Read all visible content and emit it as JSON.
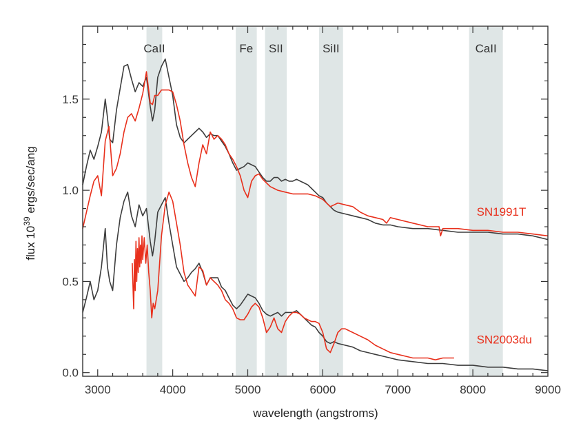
{
  "chart_data": {
    "type": "line",
    "xlabel": "wavelength (angstroms)",
    "ylabel_prefix": "flux 10",
    "ylabel_exponent": "39",
    "ylabel_suffix": " ergs/sec/ang",
    "xlim": [
      2800,
      9000
    ],
    "ylim": [
      -0.02,
      1.9
    ],
    "xticks": [
      3000,
      4000,
      5000,
      6000,
      7000,
      8000,
      9000
    ],
    "yticks": [
      0.0,
      0.5,
      1.0,
      1.5
    ],
    "ytick_labels": [
      "0.0",
      "0.5",
      "1.0",
      "1.5"
    ],
    "grid": false,
    "colors": {
      "dark": "#3d3d3d",
      "red": "#e8301c",
      "band": "#dfe6e6"
    },
    "bands": [
      {
        "label": "CaII",
        "from": 3650,
        "to": 3860
      },
      {
        "label": "Fe",
        "from": 4840,
        "to": 5120
      },
      {
        "label": "SII",
        "from": 5230,
        "to": 5520
      },
      {
        "label": "SiII",
        "from": 5950,
        "to": 6270
      },
      {
        "label": "CaII",
        "from": 7950,
        "to": 8400
      }
    ],
    "series_labels": [
      {
        "name": "SN1991T",
        "series": "SN1991T (red)",
        "x": 8050,
        "y": 0.86
      },
      {
        "name": "SN2003du",
        "series": "SN2003du (red)",
        "x": 8050,
        "y": 0.16
      }
    ],
    "series": [
      {
        "name": "SN1991T (dark)",
        "color": "dark",
        "x": [
          2800,
          2850,
          2900,
          2950,
          3000,
          3050,
          3100,
          3130,
          3160,
          3200,
          3250,
          3300,
          3350,
          3400,
          3450,
          3500,
          3550,
          3600,
          3650,
          3700,
          3730,
          3760,
          3800,
          3850,
          3900,
          3950,
          4000,
          4050,
          4100,
          4150,
          4200,
          4250,
          4300,
          4350,
          4400,
          4450,
          4500,
          4550,
          4600,
          4650,
          4700,
          4750,
          4800,
          4850,
          4900,
          4950,
          5000,
          5050,
          5100,
          5150,
          5200,
          5250,
          5300,
          5350,
          5400,
          5450,
          5500,
          5550,
          5600,
          5650,
          5700,
          5750,
          5800,
          5850,
          5900,
          5950,
          6000,
          6050,
          6100,
          6150,
          6200,
          6300,
          6400,
          6500,
          6600,
          6700,
          6800,
          6900,
          7000,
          7200,
          7400,
          7600,
          7800,
          8000,
          8200,
          8400,
          8600,
          8800,
          9000
        ],
        "y": [
          1.03,
          1.13,
          1.22,
          1.17,
          1.24,
          1.32,
          1.5,
          1.4,
          1.28,
          1.26,
          1.44,
          1.56,
          1.68,
          1.69,
          1.61,
          1.54,
          1.59,
          1.57,
          1.62,
          1.46,
          1.38,
          1.44,
          1.62,
          1.68,
          1.72,
          1.62,
          1.52,
          1.36,
          1.29,
          1.26,
          1.28,
          1.3,
          1.32,
          1.34,
          1.32,
          1.29,
          1.31,
          1.3,
          1.3,
          1.27,
          1.24,
          1.2,
          1.15,
          1.11,
          1.12,
          1.13,
          1.15,
          1.14,
          1.13,
          1.1,
          1.07,
          1.05,
          1.05,
          1.07,
          1.07,
          1.05,
          1.06,
          1.05,
          1.05,
          1.06,
          1.05,
          1.04,
          1.03,
          1.01,
          0.99,
          0.97,
          0.96,
          0.93,
          0.91,
          0.89,
          0.88,
          0.87,
          0.86,
          0.85,
          0.84,
          0.82,
          0.81,
          0.81,
          0.8,
          0.79,
          0.79,
          0.78,
          0.77,
          0.77,
          0.77,
          0.76,
          0.76,
          0.75,
          0.73
        ]
      },
      {
        "name": "SN1991T (red)",
        "color": "red",
        "x": [
          2800,
          2900,
          2950,
          3000,
          3050,
          3100,
          3150,
          3200,
          3250,
          3300,
          3350,
          3400,
          3450,
          3500,
          3550,
          3600,
          3650,
          3700,
          3730,
          3760,
          3800,
          3850,
          3900,
          3950,
          4000,
          4050,
          4100,
          4150,
          4200,
          4250,
          4300,
          4350,
          4400,
          4450,
          4500,
          4550,
          4600,
          4650,
          4700,
          4750,
          4800,
          4850,
          4900,
          4950,
          5000,
          5050,
          5100,
          5150,
          5200,
          5250,
          5300,
          5400,
          5500,
          5600,
          5700,
          5800,
          5900,
          6000,
          6050,
          6100,
          6150,
          6200,
          6300,
          6400,
          6500,
          6600,
          6700,
          6800,
          6850,
          6900,
          7000,
          7200,
          7400,
          7550,
          7570,
          7600,
          7800,
          8000,
          8200,
          8400,
          8600,
          8800,
          9000
        ],
        "y": [
          0.79,
          0.97,
          1.05,
          1.08,
          0.97,
          1.27,
          1.35,
          1.08,
          1.12,
          1.2,
          1.32,
          1.4,
          1.42,
          1.38,
          1.45,
          1.53,
          1.65,
          1.48,
          1.47,
          1.52,
          1.52,
          1.55,
          1.55,
          1.55,
          1.54,
          1.47,
          1.38,
          1.25,
          1.15,
          1.07,
          1.02,
          1.15,
          1.25,
          1.2,
          1.32,
          1.28,
          1.3,
          1.28,
          1.25,
          1.2,
          1.17,
          1.13,
          1.08,
          1.0,
          0.96,
          1.05,
          1.08,
          1.09,
          1.06,
          1.04,
          1.02,
          1.0,
          0.99,
          0.98,
          0.98,
          0.98,
          0.97,
          0.95,
          0.93,
          0.91,
          0.92,
          0.93,
          0.92,
          0.91,
          0.88,
          0.86,
          0.85,
          0.84,
          0.82,
          0.85,
          0.84,
          0.82,
          0.8,
          0.8,
          0.75,
          0.79,
          0.79,
          0.78,
          0.78,
          0.77,
          0.77,
          0.76,
          0.75
        ]
      },
      {
        "name": "SN2003du (dark)",
        "color": "dark",
        "x": [
          2800,
          2850,
          2900,
          2950,
          3000,
          3050,
          3100,
          3130,
          3160,
          3200,
          3250,
          3300,
          3350,
          3400,
          3450,
          3500,
          3550,
          3600,
          3650,
          3700,
          3730,
          3760,
          3800,
          3850,
          3900,
          3950,
          4000,
          4050,
          4100,
          4150,
          4200,
          4250,
          4300,
          4350,
          4400,
          4450,
          4500,
          4550,
          4600,
          4650,
          4700,
          4750,
          4800,
          4850,
          4900,
          4950,
          5000,
          5050,
          5100,
          5150,
          5200,
          5250,
          5300,
          5350,
          5400,
          5450,
          5500,
          5550,
          5600,
          5650,
          5700,
          5750,
          5800,
          5850,
          5900,
          5950,
          6000,
          6050,
          6100,
          6150,
          6200,
          6300,
          6400,
          6500,
          6600,
          6700,
          6800,
          6900,
          7000,
          7200,
          7400,
          7600,
          7800,
          8000,
          8200,
          8400,
          8600,
          8800,
          9000
        ],
        "y": [
          0.33,
          0.41,
          0.5,
          0.4,
          0.45,
          0.58,
          0.79,
          0.58,
          0.5,
          0.45,
          0.7,
          0.85,
          0.94,
          0.99,
          0.86,
          0.8,
          0.92,
          0.86,
          0.9,
          0.72,
          0.64,
          0.72,
          0.88,
          0.92,
          0.96,
          0.82,
          0.7,
          0.58,
          0.54,
          0.5,
          0.52,
          0.55,
          0.57,
          0.6,
          0.55,
          0.48,
          0.52,
          0.52,
          0.52,
          0.47,
          0.45,
          0.41,
          0.37,
          0.35,
          0.37,
          0.4,
          0.43,
          0.42,
          0.41,
          0.38,
          0.34,
          0.32,
          0.31,
          0.32,
          0.33,
          0.31,
          0.33,
          0.33,
          0.33,
          0.34,
          0.32,
          0.3,
          0.28,
          0.26,
          0.25,
          0.22,
          0.2,
          0.17,
          0.16,
          0.17,
          0.16,
          0.15,
          0.14,
          0.12,
          0.11,
          0.1,
          0.09,
          0.08,
          0.07,
          0.06,
          0.05,
          0.05,
          0.04,
          0.04,
          0.03,
          0.03,
          0.02,
          0.02,
          0.01
        ]
      },
      {
        "name": "SN2003du (red)",
        "color": "red",
        "x": [
          3460,
          3480,
          3490,
          3500,
          3510,
          3520,
          3530,
          3540,
          3550,
          3560,
          3570,
          3580,
          3590,
          3600,
          3620,
          3640,
          3660,
          3680,
          3700,
          3720,
          3740,
          3760,
          3800,
          3850,
          3900,
          3950,
          4000,
          4050,
          4100,
          4150,
          4200,
          4250,
          4300,
          4350,
          4400,
          4450,
          4500,
          4550,
          4600,
          4650,
          4700,
          4750,
          4800,
          4850,
          4900,
          4950,
          5000,
          5050,
          5100,
          5150,
          5200,
          5250,
          5300,
          5350,
          5400,
          5450,
          5500,
          5550,
          5600,
          5650,
          5700,
          5750,
          5800,
          5850,
          5900,
          5950,
          6000,
          6050,
          6100,
          6150,
          6200,
          6250,
          6300,
          6350,
          6400,
          6500,
          6600,
          6700,
          6800,
          6900,
          7000,
          7100,
          7200,
          7300,
          7400,
          7500,
          7600,
          7700,
          7750
        ],
        "y": [
          0.6,
          0.35,
          0.62,
          0.45,
          0.72,
          0.5,
          0.68,
          0.55,
          0.74,
          0.58,
          0.7,
          0.6,
          0.75,
          0.62,
          0.74,
          0.6,
          0.7,
          0.55,
          0.45,
          0.3,
          0.38,
          0.35,
          0.45,
          0.75,
          0.92,
          0.99,
          0.94,
          0.82,
          0.7,
          0.55,
          0.48,
          0.45,
          0.42,
          0.58,
          0.56,
          0.48,
          0.52,
          0.5,
          0.48,
          0.45,
          0.4,
          0.38,
          0.35,
          0.3,
          0.29,
          0.29,
          0.32,
          0.36,
          0.38,
          0.36,
          0.3,
          0.22,
          0.25,
          0.3,
          0.24,
          0.22,
          0.28,
          0.31,
          0.33,
          0.33,
          0.32,
          0.3,
          0.29,
          0.28,
          0.28,
          0.27,
          0.22,
          0.13,
          0.11,
          0.16,
          0.22,
          0.24,
          0.24,
          0.23,
          0.22,
          0.2,
          0.18,
          0.15,
          0.13,
          0.11,
          0.1,
          0.09,
          0.08,
          0.08,
          0.08,
          0.07,
          0.08,
          0.08,
          0.08
        ]
      }
    ]
  }
}
